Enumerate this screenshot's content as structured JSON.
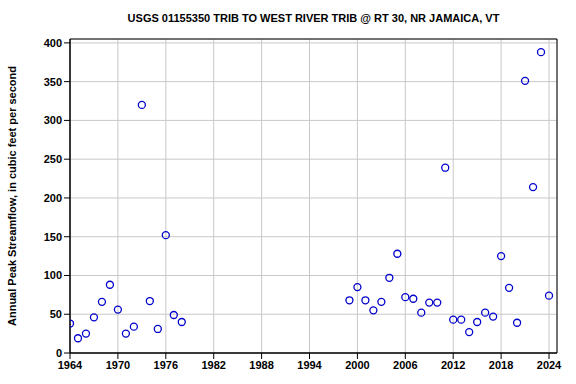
{
  "chart_data": {
    "type": "scatter",
    "title": "USGS 01155350 TRIB TO WEST RIVER TRIB @ RT 30, NR JAMAICA, VT",
    "y_label": "Annual Peak Streamflow, in cubic feet per second",
    "x": [
      1964,
      1965,
      1966,
      1967,
      1968,
      1969,
      1970,
      1971,
      1972,
      1973,
      1974,
      1975,
      1976,
      1977,
      1978,
      1999,
      2000,
      2001,
      2002,
      2003,
      2004,
      2005,
      2006,
      2007,
      2008,
      2009,
      2010,
      2011,
      2012,
      2013,
      2014,
      2015,
      2016,
      2017,
      2018,
      2019,
      2020,
      2021,
      2022,
      2023,
      2024
    ],
    "values": [
      38,
      19,
      25,
      46,
      66,
      88,
      56,
      25,
      34,
      320,
      67,
      31,
      152,
      49,
      40,
      68,
      85,
      68,
      55,
      66,
      97,
      128,
      72,
      70,
      52,
      65,
      65,
      239,
      43,
      43,
      27,
      40,
      52,
      47,
      125,
      84,
      39,
      351,
      214,
      388,
      74
    ],
    "color": "#0000cc",
    "marker": "open_circle",
    "xlim": [
      1964,
      2025
    ],
    "xticks": [
      1964,
      1970,
      1976,
      1982,
      1988,
      1994,
      2000,
      2006,
      2012,
      2018,
      2024
    ],
    "ylim": [
      0,
      405
    ],
    "yticks": [
      0,
      50,
      100,
      150,
      200,
      250,
      300,
      350,
      400
    ],
    "grid": true
  }
}
